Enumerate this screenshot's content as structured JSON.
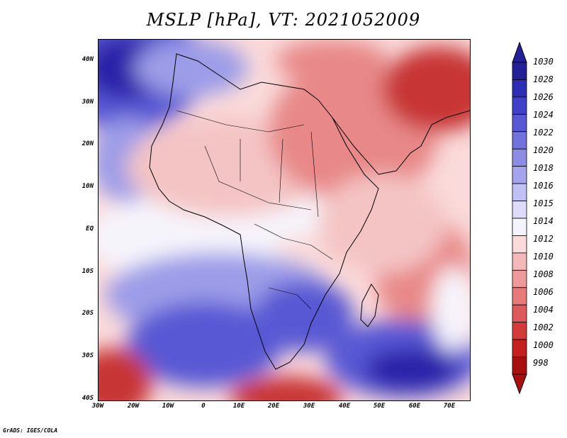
{
  "title": "MSLP [hPa], VT: 2021052009",
  "footer": "GrADS: IGES/COLA",
  "lat_labels": [
    "40N",
    "30N",
    "20N",
    "10N",
    "EQ",
    "10S",
    "20S",
    "30S",
    "40S"
  ],
  "lon_labels": [
    "30W",
    "20W",
    "10W",
    "0",
    "10E",
    "20E",
    "30E",
    "40E",
    "50E",
    "60E",
    "70E"
  ],
  "colorbar": {
    "levels": [
      "1030",
      "1028",
      "1026",
      "1024",
      "1022",
      "1020",
      "1018",
      "1016",
      "1015",
      "1014",
      "1012",
      "1010",
      "1008",
      "1006",
      "1004",
      "1002",
      "1000",
      "998"
    ],
    "colors": [
      "#242098",
      "#2e2eb4",
      "#4040c8",
      "#5858d4",
      "#7272dc",
      "#8c8ce4",
      "#a4a4ec",
      "#c0c0f4",
      "#dcdcfa",
      "#f4f4fe",
      "#fadada",
      "#f4b8b8",
      "#ee9a9a",
      "#e67a7a",
      "#de5a5a",
      "#d43c3c",
      "#c42020",
      "#a81010"
    ]
  },
  "map": {
    "background_color": "#fadada",
    "field_colors": {
      "high_strong": "#2a22a8",
      "high_mid": "#5858d4",
      "high_weak": "#9c9ce8",
      "neutral": "#f6f4fb",
      "low_weak": "#f4c4c4",
      "low_mid": "#e88888",
      "low_strong": "#c83434"
    }
  }
}
